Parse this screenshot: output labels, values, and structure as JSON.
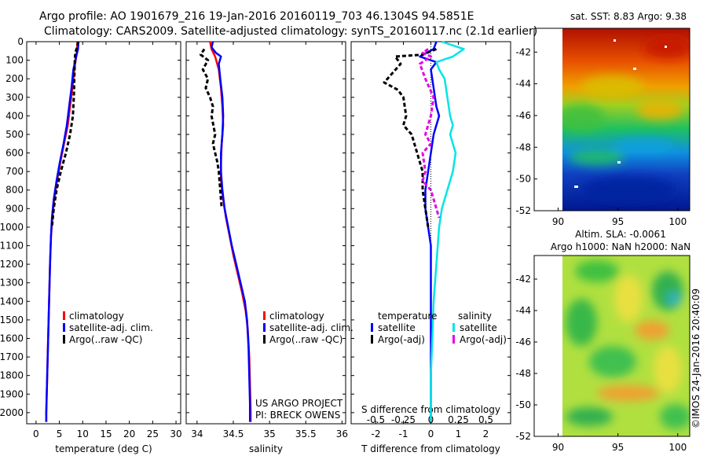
{
  "header": {
    "line1": "Argo profile: AO 1901679_216 19-Jan-2016 20160119_703 46.1304S 94.5851E",
    "line2": "Climatology: CARS2009. Satellite-adjusted climatology: synTS_20160117.nc (2.1d earlier)"
  },
  "credits": {
    "project": "US ARGO PROJECT",
    "pi": "PI: BRECK OWENS",
    "imos": "©IMOS 24-Jan-2016 20:40:09"
  },
  "colors": {
    "climatology": "#ff0000",
    "satellite": "#0000ff",
    "argo": "#000000",
    "salinity_satellite": "#00e5e5",
    "salinity_argo": "#e600e6"
  },
  "chart_data": [
    {
      "id": "temperature",
      "type": "line",
      "xlabel": "temperature (deg C)",
      "ylabel": "",
      "xlim": [
        -2,
        31
      ],
      "ylim": [
        2060,
        0
      ],
      "xticks": [
        0,
        5,
        10,
        15,
        20,
        25,
        30
      ],
      "yticks": [
        0,
        100,
        200,
        300,
        400,
        500,
        600,
        700,
        800,
        900,
        1000,
        1100,
        1200,
        1300,
        1400,
        1500,
        1600,
        1700,
        1800,
        1900,
        2000
      ],
      "legend": [
        "climatology",
        "satellite-adj. clim.",
        "Argo(..raw -QC)"
      ],
      "legend_placement": "lower-center",
      "series": [
        {
          "name": "climatology",
          "color": "#ff0000",
          "points": [
            [
              8.9,
              0
            ],
            [
              8.8,
              40
            ],
            [
              8.6,
              80
            ],
            [
              8.2,
              150
            ],
            [
              7.8,
              250
            ],
            [
              7.3,
              350
            ],
            [
              6.8,
              450
            ],
            [
              6.0,
              550
            ],
            [
              5.2,
              650
            ],
            [
              4.5,
              750
            ],
            [
              3.9,
              850
            ],
            [
              3.5,
              950
            ],
            [
              3.2,
              1050
            ],
            [
              3.0,
              1200
            ],
            [
              2.8,
              1400
            ],
            [
              2.6,
              1600
            ],
            [
              2.4,
              1800
            ],
            [
              2.2,
              2000
            ],
            [
              2.2,
              2050
            ]
          ]
        },
        {
          "name": "satellite-adj. clim.",
          "color": "#0000ff",
          "points": [
            [
              9.1,
              0
            ],
            [
              9.0,
              40
            ],
            [
              8.6,
              80
            ],
            [
              8.0,
              150
            ],
            [
              7.6,
              250
            ],
            [
              7.1,
              350
            ],
            [
              6.6,
              450
            ],
            [
              5.9,
              550
            ],
            [
              5.1,
              650
            ],
            [
              4.4,
              750
            ],
            [
              3.8,
              850
            ],
            [
              3.4,
              950
            ],
            [
              3.2,
              1050
            ],
            [
              3.0,
              1200
            ],
            [
              2.8,
              1400
            ],
            [
              2.6,
              1600
            ],
            [
              2.4,
              1800
            ],
            [
              2.2,
              2000
            ],
            [
              2.2,
              2050
            ]
          ]
        },
        {
          "name": "Argo(..raw -QC)",
          "color": "#000000",
          "points": [
            [
              9.0,
              0
            ],
            [
              8.8,
              30
            ],
            [
              8.4,
              60
            ],
            [
              8.3,
              100
            ],
            [
              8.2,
              200
            ],
            [
              8.1,
              300
            ],
            [
              7.9,
              400
            ],
            [
              7.3,
              500
            ],
            [
              6.4,
              600
            ],
            [
              5.3,
              700
            ],
            [
              4.4,
              800
            ],
            [
              3.8,
              900
            ],
            [
              3.4,
              1000
            ]
          ]
        }
      ]
    },
    {
      "id": "salinity",
      "type": "line",
      "xlabel": "salinity",
      "ylabel": "",
      "xlim": [
        33.85,
        36.05
      ],
      "ylim": [
        2060,
        0
      ],
      "xticks": [
        34,
        34.5,
        35,
        35.5,
        36
      ],
      "legend": [
        "climatology",
        "satellite-adj. clim.",
        "Argo(..raw -QC)"
      ],
      "legend_placement": "lower-center",
      "series": [
        {
          "name": "climatology",
          "color": "#ff0000",
          "points": [
            [
              34.18,
              0
            ],
            [
              34.2,
              40
            ],
            [
              34.25,
              80
            ],
            [
              34.3,
              150
            ],
            [
              34.33,
              250
            ],
            [
              34.35,
              350
            ],
            [
              34.36,
              450
            ],
            [
              34.34,
              550
            ],
            [
              34.33,
              650
            ],
            [
              34.33,
              750
            ],
            [
              34.36,
              850
            ],
            [
              34.4,
              950
            ],
            [
              34.45,
              1050
            ],
            [
              34.5,
              1150
            ],
            [
              34.56,
              1250
            ],
            [
              34.62,
              1350
            ],
            [
              34.67,
              1450
            ],
            [
              34.7,
              1550
            ],
            [
              34.72,
              1700
            ],
            [
              34.73,
              1850
            ],
            [
              34.74,
              2000
            ],
            [
              34.74,
              2050
            ]
          ]
        },
        {
          "name": "satellite-adj. clim.",
          "color": "#0000ff",
          "points": [
            [
              34.22,
              0
            ],
            [
              34.2,
              30
            ],
            [
              34.26,
              60
            ],
            [
              34.33,
              80
            ],
            [
              34.3,
              120
            ],
            [
              34.32,
              200
            ],
            [
              34.35,
              300
            ],
            [
              34.36,
              400
            ],
            [
              34.35,
              500
            ],
            [
              34.33,
              600
            ],
            [
              34.33,
              700
            ],
            [
              34.35,
              800
            ],
            [
              34.38,
              900
            ],
            [
              34.43,
              1000
            ],
            [
              34.48,
              1100
            ],
            [
              34.54,
              1200
            ],
            [
              34.6,
              1300
            ],
            [
              34.66,
              1400
            ],
            [
              34.69,
              1500
            ],
            [
              34.71,
              1650
            ],
            [
              34.72,
              1800
            ],
            [
              34.73,
              1950
            ],
            [
              34.73,
              2050
            ]
          ]
        },
        {
          "name": "Argo(..raw -QC)",
          "color": "#000000",
          "points": [
            [
              34.1,
              40
            ],
            [
              34.05,
              70
            ],
            [
              34.15,
              100
            ],
            [
              34.08,
              150
            ],
            [
              34.15,
              200
            ],
            [
              34.12,
              250
            ],
            [
              34.18,
              300
            ],
            [
              34.22,
              350
            ],
            [
              34.2,
              400
            ],
            [
              34.25,
              500
            ],
            [
              34.22,
              550
            ],
            [
              34.25,
              600
            ],
            [
              34.28,
              650
            ],
            [
              34.3,
              700
            ],
            [
              34.32,
              800
            ],
            [
              34.34,
              900
            ]
          ]
        }
      ]
    },
    {
      "id": "difference",
      "type": "line",
      "xlabel": "T difference from climatology",
      "xlabel2": "S difference from climatology",
      "ylabel": "",
      "xlim": [
        -2.9,
        2.9
      ],
      "ylim": [
        2060,
        0
      ],
      "xticks": [
        -2,
        -1,
        0,
        1,
        2
      ],
      "xticks2": [
        -0.5,
        -0.25,
        0,
        0.25,
        0.5
      ],
      "legend_titles": [
        "temperature",
        "salinity"
      ],
      "legend": [
        "satellite",
        "Argo(-adj)",
        "satellite",
        "Argo(-adj)"
      ],
      "legend_placement": "lower-center",
      "series": [
        {
          "name": "satellite",
          "group": "temperature",
          "color": "#0000ff",
          "points": [
            [
              0.2,
              0
            ],
            [
              0.1,
              40
            ],
            [
              -0.4,
              80
            ],
            [
              0.2,
              110
            ],
            [
              0.0,
              150
            ],
            [
              0.1,
              250
            ],
            [
              0.2,
              350
            ],
            [
              0.3,
              400
            ],
            [
              0.1,
              500
            ],
            [
              0.0,
              600
            ],
            [
              -0.1,
              700
            ],
            [
              -0.2,
              800
            ],
            [
              -0.2,
              900
            ],
            [
              -0.1,
              1000
            ],
            [
              0.0,
              1100
            ],
            [
              0.0,
              1200
            ],
            [
              0.0,
              1400
            ],
            [
              0.0,
              1600
            ],
            [
              0.0,
              1800
            ],
            [
              0.0,
              2000
            ],
            [
              0.0,
              2050
            ]
          ]
        },
        {
          "name": "Argo(-adj)",
          "group": "temperature",
          "color": "#000000",
          "points": [
            [
              0.2,
              40
            ],
            [
              -0.3,
              70
            ],
            [
              -1.3,
              80
            ],
            [
              -1.1,
              120
            ],
            [
              -1.7,
              220
            ],
            [
              -1.2,
              260
            ],
            [
              -1.0,
              300
            ],
            [
              -0.9,
              400
            ],
            [
              -1.0,
              450
            ],
            [
              -0.7,
              500
            ],
            [
              -0.5,
              600
            ],
            [
              -0.3,
              700
            ],
            [
              -0.3,
              800
            ],
            [
              -0.2,
              900
            ],
            [
              -0.1,
              1000
            ]
          ]
        },
        {
          "name": "satellite",
          "group": "salinity",
          "color": "#00e5e5",
          "points": [
            [
              0.4,
              0
            ],
            [
              1.2,
              40
            ],
            [
              0.8,
              80
            ],
            [
              0.2,
              110
            ],
            [
              0.3,
              150
            ],
            [
              0.5,
              200
            ],
            [
              0.6,
              300
            ],
            [
              0.7,
              400
            ],
            [
              0.8,
              450
            ],
            [
              0.7,
              500
            ],
            [
              0.9,
              600
            ],
            [
              0.8,
              700
            ],
            [
              0.6,
              800
            ],
            [
              0.4,
              900
            ],
            [
              0.3,
              1000
            ],
            [
              0.2,
              1200
            ],
            [
              0.1,
              1400
            ],
            [
              0.05,
              1600
            ],
            [
              0.0,
              1800
            ],
            [
              0.0,
              2000
            ],
            [
              0.0,
              2050
            ]
          ]
        },
        {
          "name": "Argo(-adj)",
          "group": "salinity",
          "color": "#e600e6",
          "points": [
            [
              -0.1,
              40
            ],
            [
              -0.3,
              60
            ],
            [
              0.0,
              80
            ],
            [
              -0.4,
              120
            ],
            [
              -0.2,
              200
            ],
            [
              0.1,
              300
            ],
            [
              0.0,
              400
            ],
            [
              -0.2,
              500
            ],
            [
              0.0,
              550
            ],
            [
              -0.3,
              600
            ],
            [
              -0.2,
              700
            ],
            [
              -0.3,
              750
            ],
            [
              0.0,
              800
            ],
            [
              0.2,
              900
            ],
            [
              0.3,
              950
            ]
          ]
        }
      ]
    }
  ],
  "maps": [
    {
      "id": "sst-map",
      "title": "sat. SST: 8.83 Argo: 9.38",
      "type": "heatmap",
      "xlim": [
        88,
        101
      ],
      "ylim": [
        -52,
        -40.5
      ],
      "xticks": [
        90,
        95,
        100
      ],
      "yticks": [
        -42,
        -44,
        -46,
        -48,
        -50,
        -52
      ]
    },
    {
      "id": "sla-map",
      "title_line1": "Altim. SLA: -0.0061",
      "title_line2": "Argo h1000: NaN h2000: NaN",
      "type": "heatmap",
      "xlim": [
        88,
        101
      ],
      "ylim": [
        -52,
        -40.5
      ],
      "xticks": [
        90,
        95,
        100
      ],
      "yticks": [
        -42,
        -44,
        -46,
        -48,
        -50,
        -52
      ]
    }
  ]
}
